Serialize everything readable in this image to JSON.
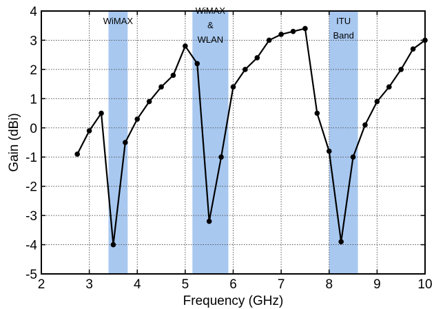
{
  "chart_data": {
    "type": "line",
    "xlabel": "Frequency (GHz)",
    "ylabel": "Gain (dBi)",
    "xlim": [
      2,
      10
    ],
    "ylim": [
      -5,
      4
    ],
    "xticks": [
      2,
      3,
      4,
      5,
      6,
      7,
      8,
      9,
      10
    ],
    "yticks": [
      4,
      3,
      2,
      1,
      0,
      -1,
      -2,
      -3,
      -4,
      -5
    ],
    "grid": true,
    "line_color": "#000000",
    "band_color": "#a8c8f0",
    "bands": [
      {
        "x0": 3.4,
        "x1": 3.8,
        "lines": [
          "WiMAX"
        ]
      },
      {
        "x0": 5.15,
        "x1": 5.9,
        "lines": [
          "WiMAX",
          "&",
          "WLAN"
        ]
      },
      {
        "x0": 8.0,
        "x1": 8.6,
        "lines": [
          "ITU",
          "Band"
        ]
      }
    ],
    "series": [
      {
        "x": [
          2.75,
          3.0,
          3.25,
          3.5,
          3.75,
          4.0,
          4.25,
          4.5,
          4.75,
          5.0,
          5.25,
          5.5,
          5.75,
          6.0,
          6.25,
          6.5,
          6.75,
          7.0,
          7.25,
          7.5,
          7.75,
          8.0,
          8.25,
          8.5,
          8.75,
          9.0,
          9.25,
          9.5,
          9.75,
          10.0
        ],
        "y": [
          -0.9,
          -0.1,
          0.5,
          -4.0,
          -0.5,
          0.3,
          0.9,
          1.4,
          1.8,
          2.8,
          2.2,
          -3.2,
          -1.0,
          1.4,
          2.0,
          2.4,
          3.0,
          3.2,
          3.3,
          3.4,
          0.5,
          -0.8,
          -3.9,
          -1.0,
          0.1,
          0.9,
          1.4,
          2.0,
          2.7,
          3.0
        ]
      }
    ]
  }
}
